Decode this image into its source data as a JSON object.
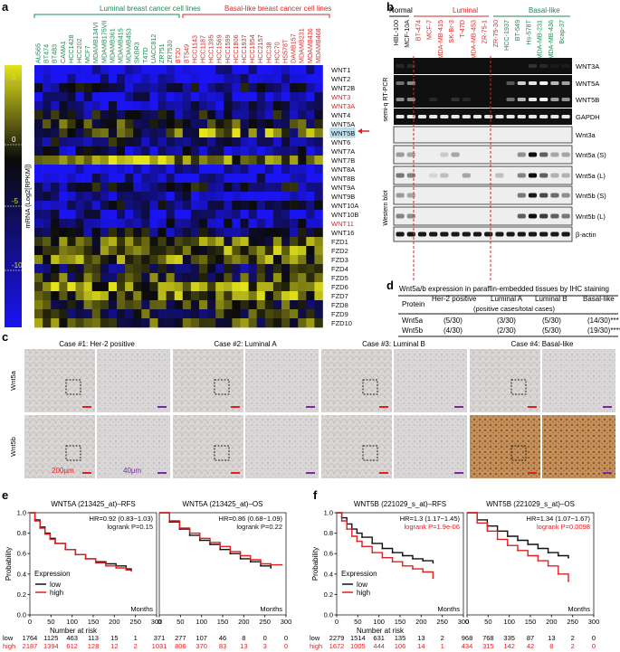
{
  "panel_letters": {
    "a": "a",
    "b": "b",
    "c": "c",
    "d": "d",
    "e": "e",
    "f": "f"
  },
  "heatmap": {
    "luminal_header": "Luminal breast cancer cell lines",
    "basal_header": "Basal-like breast cancer cell lines",
    "luminal_lines": [
      "AU565",
      "BT474",
      "BT483",
      "CAMA1",
      "HCC1428",
      "HCC202",
      "MCF7",
      "MDAMB134VI",
      "MDAMB175VII",
      "MDAMB361",
      "MDAMB415",
      "MDAMB453",
      "SKBR3",
      "T47D",
      "UACC812",
      "ZR751",
      "ZR7530"
    ],
    "basal_lines": [
      "BT20",
      "BT549",
      "HCC1143",
      "HCC1187",
      "HCC1395",
      "HCC1569",
      "HCC1599",
      "HCC1806",
      "HCC1937",
      "HCC1954",
      "HCC2157",
      "HCC38",
      "HCC70",
      "HS578T",
      "DAMB157",
      "MDAMB231",
      "MDAMB436",
      "MDAMB468"
    ],
    "genes": [
      "WNT1",
      "WNT2",
      "WNT2B",
      "WNT3",
      "WNT3A",
      "WNT4",
      "WNT5A",
      "WNT5B",
      "WNT6",
      "WNT7A",
      "WNT7B",
      "WNT8A",
      "WNT8B",
      "WNT9A",
      "WNT9B",
      "WNT10A",
      "WNT10B",
      "WNT11",
      "WNT16",
      "FZD1",
      "FZD2",
      "FZD3",
      "FZD4",
      "FZD5",
      "FZD6",
      "FZD7",
      "FZD8",
      "FZD9",
      "FZD10"
    ],
    "red_genes": [
      "WNT3",
      "WNT3A",
      "WNT11"
    ],
    "highlight_genes": [
      "WNT5A",
      "WNT5B"
    ],
    "scale_label": "mRNA (Log2[RPKM])",
    "scale_ticks": [
      "5",
      "0",
      "-5",
      "-10"
    ],
    "colors": {
      "high": "#e4e31c",
      "mid": "#0a0a0a",
      "low": "#1a14f2",
      "luminal": "#1d8a54",
      "basal": "#d42a2a",
      "arrow": "#e22020"
    }
  },
  "blots": {
    "group_labels": [
      "Normal",
      "Luminal",
      "Basal-like"
    ],
    "lanes": [
      "HBL-100",
      "MCF-10A",
      "BT-474",
      "MCF-7",
      "MDA-MB-415",
      "SK-Br-3",
      "T-47D",
      "MDA-MB-453",
      "ZR-75-1",
      "ZR-75-30",
      "HCC-1937",
      "BT-549",
      "Hs-578T",
      "MDA-MB-231",
      "MDA-MB-436",
      "Bcap-37"
    ],
    "lane_groups": [
      "n",
      "n",
      "l",
      "l",
      "l",
      "l",
      "l",
      "l",
      "l",
      "l",
      "b",
      "b",
      "b",
      "b",
      "b",
      "b"
    ],
    "pcr_side_label": "semi-q RT-PCR",
    "wb_side_label": "Western blot",
    "pcr_rows": [
      "WNT3A",
      "WNT5A",
      "WNT5B",
      "GAPDH"
    ],
    "wb_rows": [
      "Wnt3a",
      "Wnt5a (S)",
      "Wnt5a (L)",
      "Wnt5b (S)",
      "Wnt5b (L)",
      "β-actin"
    ]
  },
  "ihc_table": {
    "title": "Wnt5a/b expression in paraffin-embedded tissues by IHC staining",
    "headers": [
      "Protein",
      "Her-2 positive",
      "Luminal A",
      "Luminal B",
      "Basal-like"
    ],
    "subheader": "(positive cases/total cases)",
    "rows": [
      [
        "Wnt5a",
        "(5/30)",
        "(3/30)",
        "(5/30)",
        "(14/30)***"
      ],
      [
        "Wnt5b",
        "(4/30)",
        "(2/30)",
        "(5/30)",
        "(19/30)****"
      ]
    ]
  },
  "ihc": {
    "cases": [
      "Case #1: Her-2 positive",
      "Case #2: Luminal A",
      "Case #3: Luminal B",
      "Case #4: Basal-like"
    ],
    "row_labels": [
      "Wnt5a",
      "Wnt5b"
    ],
    "scale_200": "200μm",
    "scale_40": "40μm"
  },
  "km_axis": {
    "ylabel": "Probability",
    "xlabel": "Number at risk",
    "months": "Months",
    "legend_title": "Expression",
    "legend_low": "low",
    "legend_high": "high",
    "colors": {
      "low": "#111111",
      "high": "#e02020"
    },
    "xticks": [
      "0",
      "50",
      "100",
      "150",
      "200",
      "250",
      "300"
    ],
    "yticks": [
      "0.0",
      "0.2",
      "0.4",
      "0.6",
      "0.8",
      "1.0"
    ]
  },
  "chart_data": [
    {
      "type": "line",
      "title": "WNT5A (213425_at)–RFS",
      "hr_text": "HR=0.92 (0.83−1.03)",
      "p_text": "logrank P=0.15",
      "p_red": false,
      "xlim": [
        0,
        300
      ],
      "ylim": [
        0,
        1
      ],
      "series": [
        {
          "name": "low",
          "x": [
            0,
            12,
            24,
            36,
            48,
            60,
            84,
            108,
            132,
            156,
            180,
            204,
            228,
            240
          ],
          "y": [
            1,
            0.93,
            0.86,
            0.8,
            0.75,
            0.7,
            0.64,
            0.59,
            0.55,
            0.52,
            0.5,
            0.48,
            0.45,
            0.44
          ]
        },
        {
          "name": "high",
          "x": [
            0,
            12,
            24,
            36,
            48,
            60,
            84,
            108,
            132,
            156,
            180,
            204,
            228,
            240
          ],
          "y": [
            1,
            0.92,
            0.85,
            0.79,
            0.74,
            0.7,
            0.64,
            0.59,
            0.55,
            0.51,
            0.48,
            0.46,
            0.44,
            0.43
          ]
        }
      ],
      "risk_low": [
        "1764",
        "1125",
        "463",
        "113",
        "15",
        "1",
        ""
      ],
      "risk_high": [
        "2187",
        "1394",
        "612",
        "128",
        "12",
        "2",
        ""
      ]
    },
    {
      "type": "line",
      "title": "WNT5A (213425_at)–OS",
      "hr_text": "HR=0.86 (0.68−1.09)",
      "p_text": "logrank P=0.22",
      "p_red": false,
      "xlim": [
        0,
        300
      ],
      "ylim": [
        0,
        1
      ],
      "series": [
        {
          "name": "low",
          "x": [
            0,
            24,
            48,
            72,
            96,
            120,
            144,
            168,
            192,
            216,
            240,
            264
          ],
          "y": [
            1,
            0.91,
            0.84,
            0.78,
            0.73,
            0.69,
            0.64,
            0.6,
            0.55,
            0.52,
            0.48,
            0.46
          ]
        },
        {
          "name": "high",
          "x": [
            0,
            24,
            48,
            72,
            96,
            120,
            144,
            168,
            192,
            216,
            240,
            264,
            290
          ],
          "y": [
            1,
            0.92,
            0.85,
            0.8,
            0.75,
            0.71,
            0.67,
            0.62,
            0.58,
            0.54,
            0.5,
            0.49,
            0.49
          ]
        }
      ],
      "risk_low": [
        "371",
        "277",
        "107",
        "46",
        "8",
        "0",
        "0"
      ],
      "risk_high": [
        "1031",
        "806",
        "370",
        "83",
        "13",
        "3",
        "0"
      ]
    },
    {
      "type": "line",
      "title": "WNT5B (221029_s_at)–RFS",
      "hr_text": "HR=1.3 (1.17−1.45)",
      "p_text": "logrank P=1.9e-06",
      "p_red": true,
      "xlim": [
        0,
        300
      ],
      "ylim": [
        0,
        1
      ],
      "series": [
        {
          "name": "low",
          "x": [
            0,
            12,
            24,
            36,
            48,
            60,
            84,
            108,
            132,
            156,
            180,
            204,
            228
          ],
          "y": [
            1,
            0.95,
            0.89,
            0.84,
            0.8,
            0.76,
            0.7,
            0.65,
            0.61,
            0.58,
            0.55,
            0.53,
            0.51
          ]
        },
        {
          "name": "high",
          "x": [
            0,
            12,
            24,
            36,
            48,
            60,
            84,
            108,
            132,
            156,
            180,
            204,
            228
          ],
          "y": [
            1,
            0.92,
            0.84,
            0.77,
            0.72,
            0.67,
            0.61,
            0.56,
            0.52,
            0.48,
            0.45,
            0.42,
            0.36
          ]
        }
      ],
      "risk_low": [
        "2279",
        "1514",
        "631",
        "135",
        "13",
        "2",
        ""
      ],
      "risk_high": [
        "1672",
        "1005",
        "444",
        "106",
        "14",
        "1",
        ""
      ]
    },
    {
      "type": "line",
      "title": "WNT5B (221029_s_at)–OS",
      "hr_text": "HR=1.34 (1.07−1.67)",
      "p_text": "logrank P=0.0098",
      "p_red": true,
      "xlim": [
        0,
        300
      ],
      "ylim": [
        0,
        1
      ],
      "series": [
        {
          "name": "low",
          "x": [
            0,
            24,
            48,
            72,
            96,
            120,
            144,
            168,
            192,
            216,
            240
          ],
          "y": [
            1,
            0.93,
            0.87,
            0.82,
            0.77,
            0.73,
            0.69,
            0.65,
            0.61,
            0.58,
            0.56
          ]
        },
        {
          "name": "high",
          "x": [
            0,
            24,
            48,
            72,
            96,
            120,
            144,
            168,
            192,
            216,
            240
          ],
          "y": [
            1,
            0.9,
            0.82,
            0.74,
            0.68,
            0.63,
            0.58,
            0.53,
            0.48,
            0.4,
            0.33
          ]
        }
      ],
      "risk_low": [
        "968",
        "768",
        "335",
        "87",
        "13",
        "2",
        "0"
      ],
      "risk_high": [
        "434",
        "315",
        "142",
        "42",
        "8",
        "2",
        "0"
      ]
    }
  ]
}
